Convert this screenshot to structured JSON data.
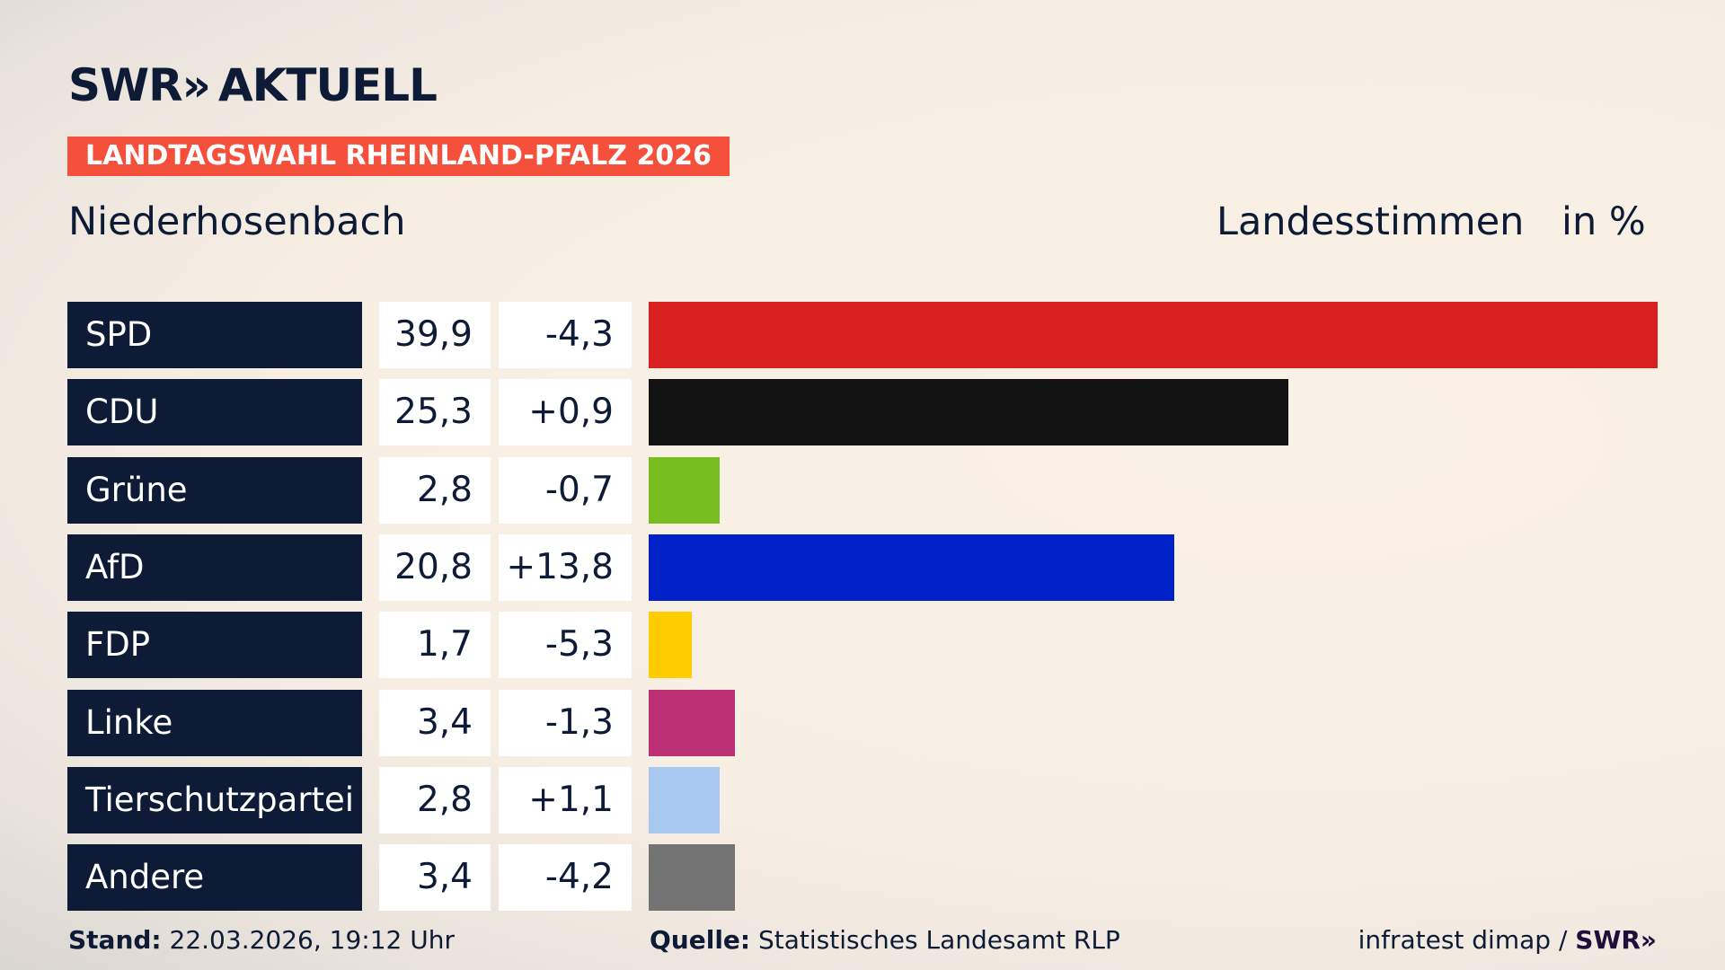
{
  "header": {
    "logo_text": "SWR",
    "logo_chevrons": "»",
    "logo_suffix": "AKTUELL",
    "banner": "LANDTAGSWAHL RHEINLAND-PFALZ 2026",
    "region": "Niederhosenbach",
    "vote_type": "Landesstimmen",
    "unit": "in %"
  },
  "chart_data": {
    "type": "bar",
    "orientation": "horizontal",
    "categories": [
      "SPD",
      "CDU",
      "Grüne",
      "AfD",
      "FDP",
      "Linke",
      "Tierschutzpartei",
      "Andere"
    ],
    "values": [
      39.9,
      25.3,
      2.8,
      20.8,
      1.7,
      3.4,
      2.8,
      3.4
    ],
    "value_labels": [
      "39,9",
      "25,3",
      "2,8",
      "20,8",
      "1,7",
      "3,4",
      "2,8",
      "3,4"
    ],
    "change_labels": [
      "-4,3",
      "+0,9",
      "-0,7",
      "+13,8",
      "-5,3",
      "-1,3",
      "+1,1",
      "-4,2"
    ],
    "changes": [
      -4.3,
      0.9,
      -0.7,
      13.8,
      -5.3,
      -1.3,
      1.1,
      -4.2
    ],
    "colors": [
      "#d92020",
      "#121212",
      "#78be1e",
      "#0022c8",
      "#ffcc00",
      "#bd3075",
      "#a9c8f0",
      "#737373"
    ],
    "xlim": [
      0,
      39.9
    ],
    "grid": false
  },
  "footer": {
    "stand_label": "Stand:",
    "stand_value": "22.03.2026, 19:12 Uhr",
    "source_label": "Quelle:",
    "source_value": "Statistisches Landesamt RLP",
    "credit": "infratest dimap /",
    "credit_logo": "SWR»"
  }
}
